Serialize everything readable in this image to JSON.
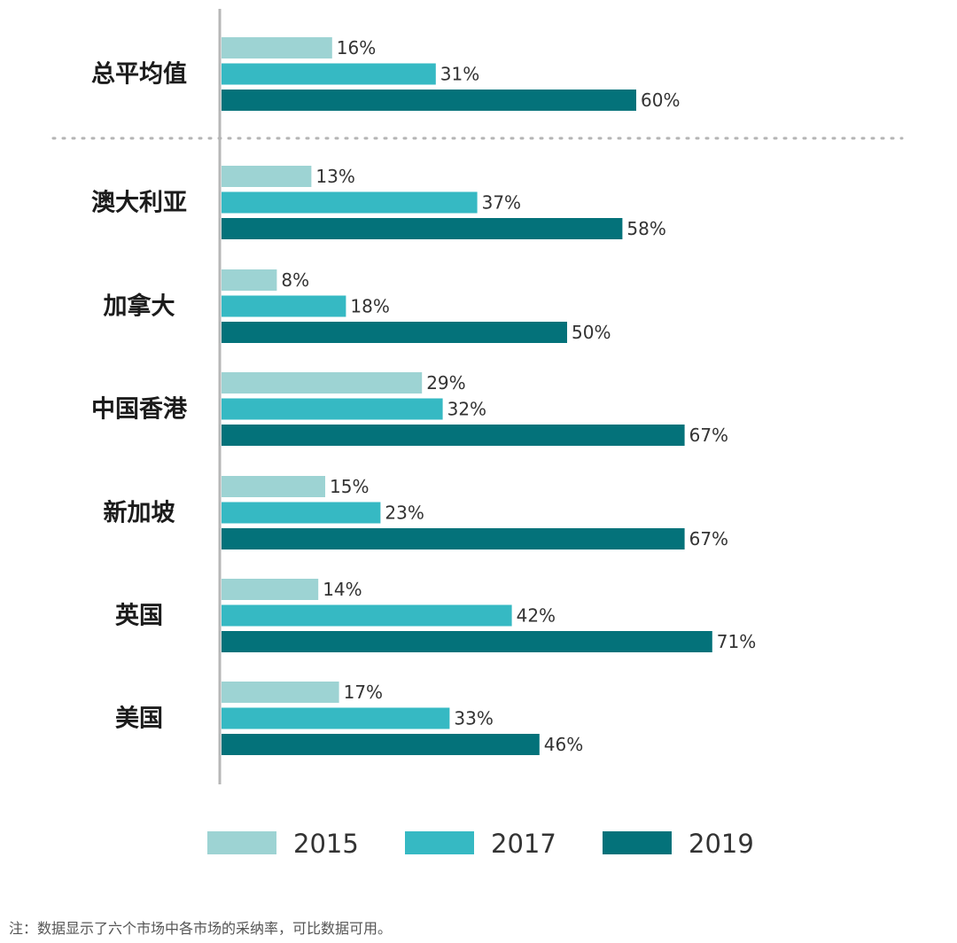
{
  "chart_data": {
    "type": "bar",
    "orientation": "horizontal",
    "title": "",
    "xlabel": "",
    "ylabel": "",
    "xlim": [
      0,
      100
    ],
    "grid": false,
    "legend_position": "bottom",
    "colors": {
      "2015": "#9dd3d3",
      "2017": "#36b9c3",
      "2019": "#04727a"
    },
    "categories": [
      "总平均值",
      "澳大利亚",
      "加拿大",
      "中国香港",
      "新加坡",
      "英国",
      "美国"
    ],
    "series": [
      {
        "name": "2015",
        "values": [
          16,
          13,
          8,
          29,
          15,
          14,
          17
        ]
      },
      {
        "name": "2017",
        "values": [
          31,
          37,
          18,
          32,
          23,
          42,
          33
        ]
      },
      {
        "name": "2019",
        "values": [
          60,
          58,
          50,
          67,
          67,
          71,
          46
        ]
      }
    ],
    "value_labels": [
      [
        "16%",
        "31%",
        "60%"
      ],
      [
        "13%",
        "37%",
        "58%"
      ],
      [
        "8%",
        "18%",
        "50%"
      ],
      [
        "29%",
        "32%",
        "67%"
      ],
      [
        "15%",
        "23%",
        "67%"
      ],
      [
        "14%",
        "42%",
        "71%"
      ],
      [
        "17%",
        "33%",
        "46%"
      ]
    ]
  },
  "footnote": "注：数据显示了六个市场中各市场的采纳率，可比数据可用。"
}
